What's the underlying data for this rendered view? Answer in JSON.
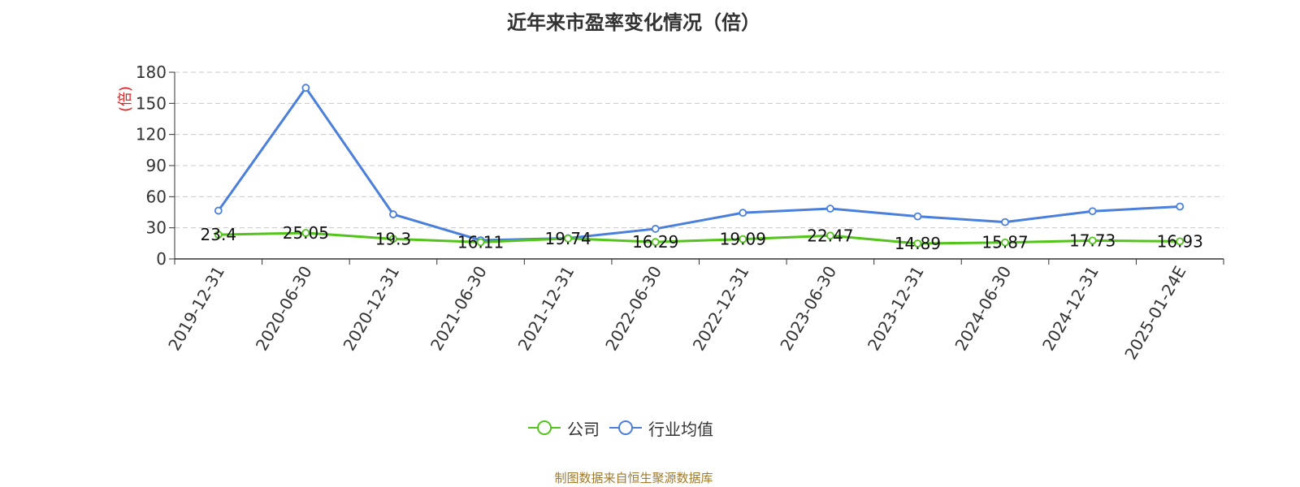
{
  "title": "近年来市盈率变化情况（倍）",
  "source": "制图数据来自恒生聚源数据库",
  "chart_data": {
    "type": "line",
    "title": "近年来市盈率变化情况（倍）",
    "ylabel": "(倍)",
    "ylim": [
      0,
      180
    ],
    "yticks": [
      0,
      30,
      60,
      90,
      120,
      150,
      180
    ],
    "grid": true,
    "legend_position": "bottom",
    "categories": [
      "2019-12-31",
      "2020-06-30",
      "2020-12-31",
      "2021-06-30",
      "2021-12-31",
      "2022-06-30",
      "2022-12-31",
      "2023-06-30",
      "2023-12-31",
      "2024-06-30",
      "2024-12-31",
      "2025-01-24E"
    ],
    "series": [
      {
        "name": "公司",
        "color": "#52c41a",
        "values": [
          23.4,
          25.05,
          19.3,
          16.11,
          19.74,
          16.29,
          19.09,
          22.47,
          14.89,
          15.87,
          17.73,
          16.93
        ],
        "labels": [
          "23.4",
          "25.05",
          "19.3",
          "16.11",
          "19.74",
          "16.29",
          "19.09",
          "22.47",
          "14.89",
          "15.87",
          "17.73",
          "16.93"
        ]
      },
      {
        "name": "行业均值",
        "color": "#4a7fdc",
        "values": [
          46.5,
          165,
          43,
          18,
          20,
          29,
          44.5,
          48.5,
          41,
          35.5,
          46,
          50.5
        ]
      }
    ]
  }
}
